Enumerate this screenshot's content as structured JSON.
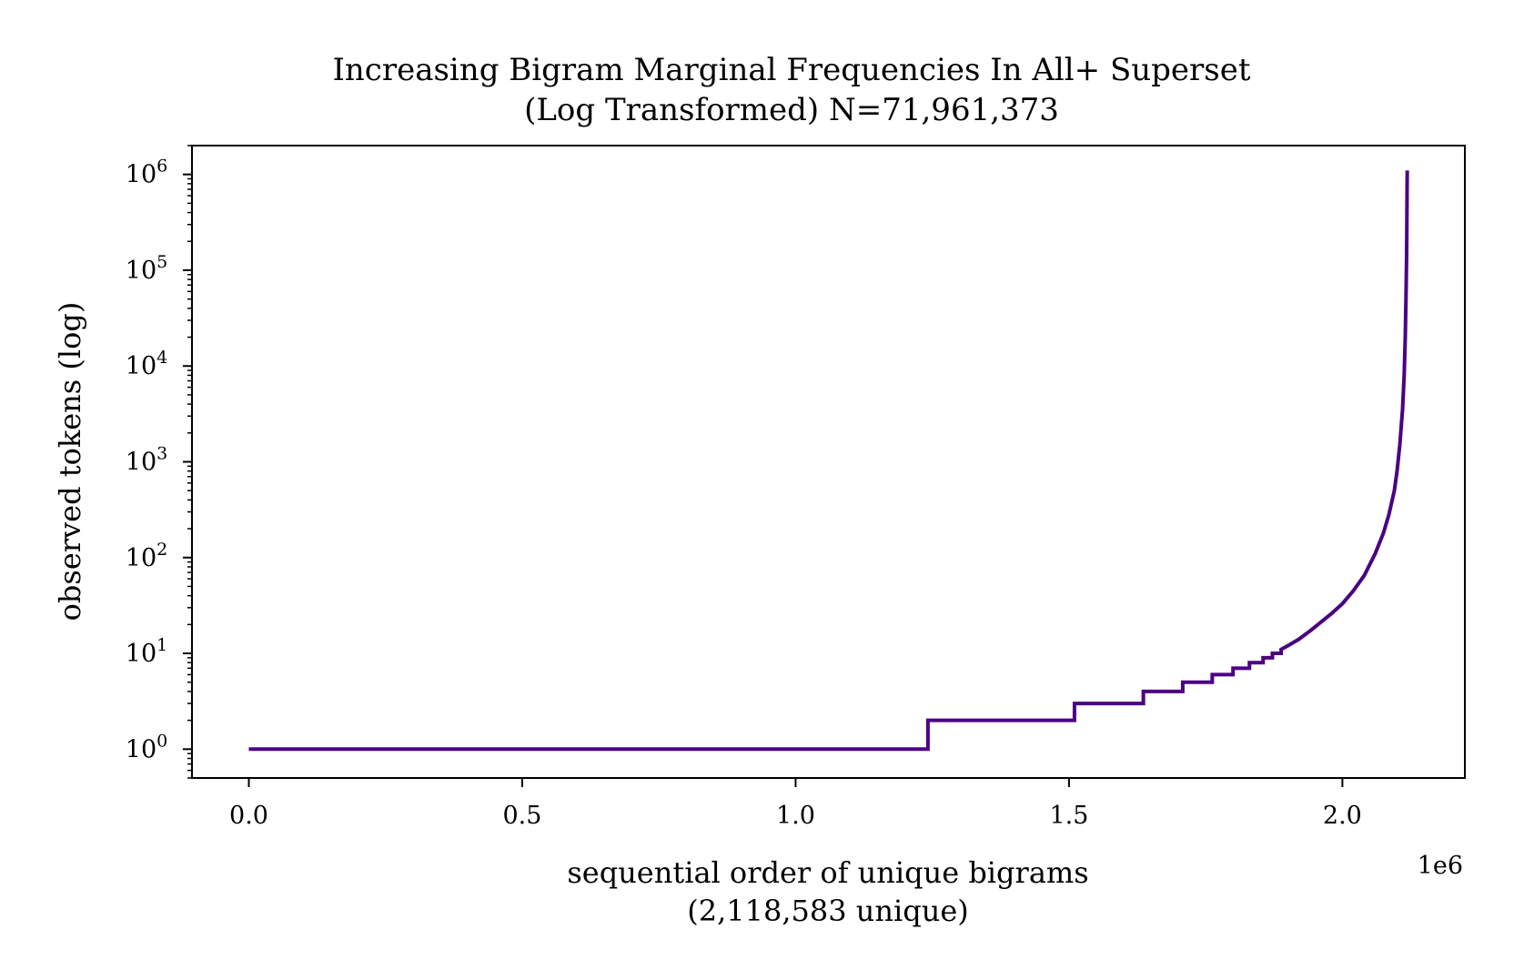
{
  "chart_data": {
    "type": "line",
    "title_line1": "Increasing Bigram Marginal Frequencies In All+ Superset",
    "title_line2": "(Log Transformed) N=71,961,373",
    "xlabel_line1": "sequential order of unique bigrams",
    "xlabel_line2": "(2,118,583 unique)",
    "ylabel": "observed tokens (log)",
    "x_offset_label": "1e6",
    "yscale": "log",
    "xlim": [
      -104000,
      2224000
    ],
    "ylim": [
      0.5,
      2000000
    ],
    "x_ticks": [
      0.0,
      0.5,
      1.0,
      1.5,
      2.0
    ],
    "x_tick_labels": [
      "0.0",
      "0.5",
      "1.0",
      "1.5",
      "2.0"
    ],
    "y_ticks": [
      1,
      10,
      100,
      1000,
      10000,
      100000,
      1000000
    ],
    "y_tick_base": "10",
    "y_tick_exponents": [
      "0",
      "1",
      "2",
      "3",
      "4",
      "5",
      "6"
    ],
    "grid": false,
    "line_color": "#4b0082",
    "series": [
      {
        "x": [
          0,
          1242000,
          1242000,
          1510000,
          1510000,
          1636000,
          1636000,
          1708000,
          1708000,
          1762000,
          1762000,
          1800000,
          1800000,
          1830000,
          1830000,
          1855000,
          1855000,
          1872000,
          1872000,
          1888000,
          1888000,
          1900000,
          1920000,
          1940000,
          1960000,
          1980000,
          2000000,
          2020000,
          2040000,
          2060000,
          2075000,
          2085000,
          2095000,
          2100000,
          2105000,
          2110000,
          2113000,
          2115000,
          2116500,
          2117500,
          2118000,
          2118300,
          2118583
        ],
        "y": [
          1,
          1,
          2,
          2,
          3,
          3,
          4,
          4,
          5,
          5,
          6,
          6,
          7,
          7,
          8,
          8,
          9,
          9,
          10,
          10,
          11,
          12,
          14,
          17,
          21,
          26,
          33,
          45,
          65,
          110,
          180,
          280,
          500,
          800,
          1500,
          3500,
          8000,
          20000,
          60000,
          150000,
          350000,
          700000,
          1100000
        ]
      }
    ]
  }
}
